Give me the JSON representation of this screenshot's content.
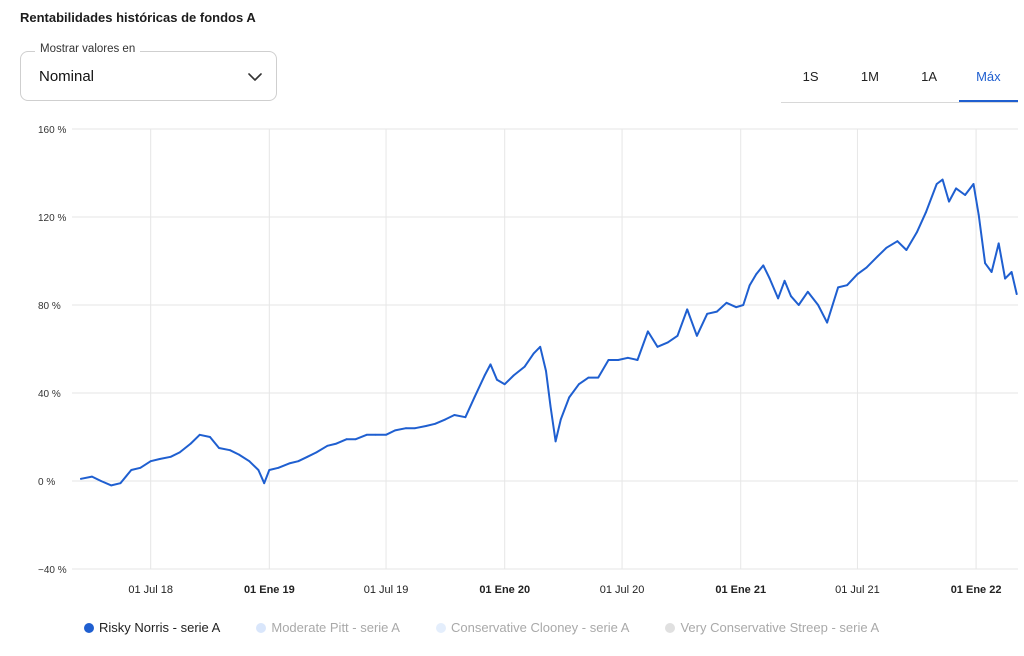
{
  "title": "Rentabilidades históricas de fondos A",
  "value_select": {
    "legend": "Mostrar valores en",
    "value": "Nominal",
    "icon": "chevron-down-icon"
  },
  "range_tabs": [
    {
      "label": "1S",
      "active": false
    },
    {
      "label": "1M",
      "active": false
    },
    {
      "label": "1A",
      "active": false
    },
    {
      "label": "Máx",
      "active": true
    }
  ],
  "colors": {
    "accent": "#1f5fd0",
    "series_active": "#1f5fd0",
    "series_inactive_1": "#d9e6fb",
    "series_inactive_2": "#e4eefc",
    "series_inactive_3": "#e0e0e0",
    "grid": "#e6e6e6"
  },
  "chart_data": {
    "type": "line",
    "title": "",
    "xlabel": "",
    "ylabel": "",
    "ylim": [
      -40,
      160
    ],
    "y_ticks": [
      -40,
      0,
      40,
      80,
      120,
      160
    ],
    "y_tick_labels": [
      "−40 %",
      "0 %",
      "40 %",
      "80 %",
      "120 %",
      "160 %"
    ],
    "x_ticks": [
      "2018-07-01",
      "2019-01-01",
      "2019-07-01",
      "2020-01-01",
      "2020-07-01",
      "2021-01-01",
      "2021-07-01",
      "2022-01-01"
    ],
    "x_tick_labels": [
      "01 Jul 18",
      "01 Ene 19",
      "01 Jul 19",
      "01 Ene 20",
      "01 Jul 20",
      "01 Ene 21",
      "01 Jul 21",
      "01 Ene 22"
    ],
    "x_tick_bold": [
      false,
      true,
      false,
      true,
      false,
      true,
      false,
      true
    ],
    "grid": true,
    "legend_position": "bottom-left",
    "series": [
      {
        "name": "Risky Norris - serie A",
        "active": true,
        "points": [
          [
            "2018-03-15",
            1
          ],
          [
            "2018-04-01",
            2
          ],
          [
            "2018-04-15",
            0
          ],
          [
            "2018-05-01",
            -2
          ],
          [
            "2018-05-15",
            -1
          ],
          [
            "2018-06-01",
            5
          ],
          [
            "2018-06-15",
            6
          ],
          [
            "2018-07-01",
            9
          ],
          [
            "2018-07-15",
            10
          ],
          [
            "2018-08-01",
            11
          ],
          [
            "2018-08-15",
            13
          ],
          [
            "2018-09-01",
            17
          ],
          [
            "2018-09-15",
            21
          ],
          [
            "2018-10-01",
            20
          ],
          [
            "2018-10-15",
            15
          ],
          [
            "2018-11-01",
            14
          ],
          [
            "2018-11-15",
            12
          ],
          [
            "2018-12-01",
            9
          ],
          [
            "2018-12-15",
            5
          ],
          [
            "2018-12-24",
            -1
          ],
          [
            "2019-01-01",
            5
          ],
          [
            "2019-01-15",
            6
          ],
          [
            "2019-02-01",
            8
          ],
          [
            "2019-02-15",
            9
          ],
          [
            "2019-03-01",
            11
          ],
          [
            "2019-03-15",
            13
          ],
          [
            "2019-04-01",
            16
          ],
          [
            "2019-04-15",
            17
          ],
          [
            "2019-05-01",
            19
          ],
          [
            "2019-05-15",
            19
          ],
          [
            "2019-06-01",
            21
          ],
          [
            "2019-06-15",
            21
          ],
          [
            "2019-07-01",
            21
          ],
          [
            "2019-07-15",
            23
          ],
          [
            "2019-08-01",
            24
          ],
          [
            "2019-08-15",
            24
          ],
          [
            "2019-09-01",
            25
          ],
          [
            "2019-09-15",
            26
          ],
          [
            "2019-10-01",
            28
          ],
          [
            "2019-10-15",
            30
          ],
          [
            "2019-11-01",
            29
          ],
          [
            "2019-11-15",
            38
          ],
          [
            "2019-12-01",
            48
          ],
          [
            "2019-12-10",
            53
          ],
          [
            "2019-12-20",
            46
          ],
          [
            "2020-01-01",
            44
          ],
          [
            "2020-01-15",
            48
          ],
          [
            "2020-02-01",
            52
          ],
          [
            "2020-02-15",
            58
          ],
          [
            "2020-02-25",
            61
          ],
          [
            "2020-03-05",
            50
          ],
          [
            "2020-03-12",
            34
          ],
          [
            "2020-03-20",
            18
          ],
          [
            "2020-03-28",
            28
          ],
          [
            "2020-04-10",
            38
          ],
          [
            "2020-04-25",
            44
          ],
          [
            "2020-05-10",
            47
          ],
          [
            "2020-05-25",
            47
          ],
          [
            "2020-06-10",
            55
          ],
          [
            "2020-06-25",
            55
          ],
          [
            "2020-07-10",
            56
          ],
          [
            "2020-07-25",
            55
          ],
          [
            "2020-08-10",
            68
          ],
          [
            "2020-08-25",
            61
          ],
          [
            "2020-09-10",
            63
          ],
          [
            "2020-09-25",
            66
          ],
          [
            "2020-10-10",
            78
          ],
          [
            "2020-10-25",
            66
          ],
          [
            "2020-11-10",
            76
          ],
          [
            "2020-11-25",
            77
          ],
          [
            "2020-12-10",
            81
          ],
          [
            "2020-12-25",
            79
          ],
          [
            "2021-01-05",
            80
          ],
          [
            "2021-01-15",
            89
          ],
          [
            "2021-01-25",
            94
          ],
          [
            "2021-02-05",
            98
          ],
          [
            "2021-02-15",
            92
          ],
          [
            "2021-02-28",
            83
          ],
          [
            "2021-03-10",
            91
          ],
          [
            "2021-03-20",
            84
          ],
          [
            "2021-04-01",
            80
          ],
          [
            "2021-04-15",
            86
          ],
          [
            "2021-05-01",
            80
          ],
          [
            "2021-05-15",
            72
          ],
          [
            "2021-06-01",
            88
          ],
          [
            "2021-06-15",
            89
          ],
          [
            "2021-07-01",
            94
          ],
          [
            "2021-07-15",
            97
          ],
          [
            "2021-08-01",
            102
          ],
          [
            "2021-08-15",
            106
          ],
          [
            "2021-09-01",
            109
          ],
          [
            "2021-09-15",
            105
          ],
          [
            "2021-10-01",
            113
          ],
          [
            "2021-10-15",
            122
          ],
          [
            "2021-11-01",
            135
          ],
          [
            "2021-11-10",
            137
          ],
          [
            "2021-11-20",
            127
          ],
          [
            "2021-12-01",
            133
          ],
          [
            "2021-12-15",
            130
          ],
          [
            "2021-12-28",
            135
          ],
          [
            "2022-01-05",
            121
          ],
          [
            "2022-01-15",
            99
          ],
          [
            "2022-01-25",
            95
          ],
          [
            "2022-02-05",
            108
          ],
          [
            "2022-02-15",
            92
          ],
          [
            "2022-02-25",
            95
          ],
          [
            "2022-03-05",
            85
          ]
        ]
      },
      {
        "name": "Moderate Pitt - serie A",
        "active": false
      },
      {
        "name": "Conservative Clooney - serie A",
        "active": false
      },
      {
        "name": "Very Conservative Streep - serie A",
        "active": false
      }
    ]
  }
}
